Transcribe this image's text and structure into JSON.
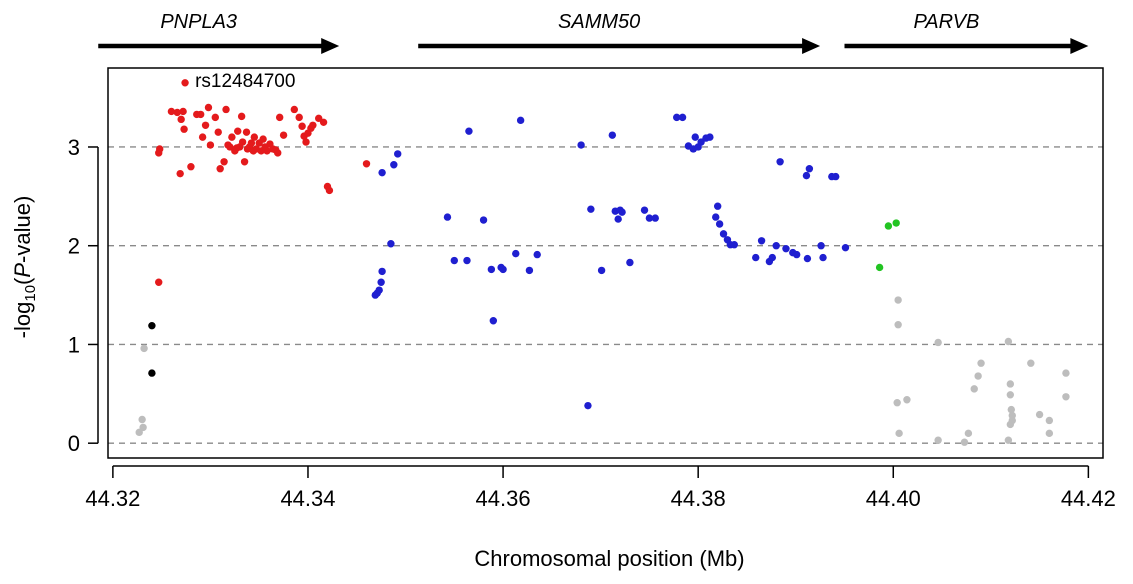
{
  "chart_data": {
    "type": "scatter",
    "xlabel": "Chromosomal position (Mb)",
    "ylabel_prefix": "-log",
    "ylabel_sub": "10",
    "ylabel_open": "(",
    "ylabel_italic": "P",
    "ylabel_suffix": "-value)",
    "xlim": [
      44.3195,
      44.4215
    ],
    "ylim": [
      -0.15,
      3.8
    ],
    "xticks": [
      {
        "value": 44.32,
        "label": "44.32"
      },
      {
        "value": 44.34,
        "label": "44.34"
      },
      {
        "value": 44.36,
        "label": "44.36"
      },
      {
        "value": 44.38,
        "label": "44.38"
      },
      {
        "value": 44.4,
        "label": "44.40"
      },
      {
        "value": 44.42,
        "label": "44.42"
      }
    ],
    "yticks": [
      {
        "value": 0,
        "label": "0"
      },
      {
        "value": 1,
        "label": "1"
      },
      {
        "value": 2,
        "label": "2"
      },
      {
        "value": 3,
        "label": "3"
      }
    ],
    "gridlines_y": [
      0,
      1,
      2,
      3
    ],
    "genes": [
      {
        "name": "PNPLA3",
        "start": 44.3185,
        "end": 44.3432
      },
      {
        "name": "SAMM50",
        "start": 44.3513,
        "end": 44.3925
      },
      {
        "name": "PARVB",
        "start": 44.395,
        "end": 44.42
      }
    ],
    "annotations": [
      {
        "text": "rs12484700",
        "x": 44.3274,
        "y": 3.65
      }
    ],
    "colors": {
      "red": "#e41a1c",
      "blue": "#1f1fd0",
      "green": "#22c422",
      "black": "#000000",
      "gray": "#bdbdbd"
    },
    "series": [
      {
        "color": "gray",
        "points": [
          [
            44.3227,
            0.11
          ],
          [
            44.3231,
            0.16
          ],
          [
            44.323,
            0.24
          ],
          [
            44.3232,
            0.96
          ],
          [
            44.4005,
            1.45
          ],
          [
            44.4005,
            1.2
          ],
          [
            44.4004,
            0.41
          ],
          [
            44.4006,
            0.1
          ],
          [
            44.4014,
            0.44
          ],
          [
            44.4046,
            1.02
          ],
          [
            44.4046,
            0.03
          ],
          [
            44.4073,
            0.01
          ],
          [
            44.4077,
            0.1
          ],
          [
            44.4083,
            0.55
          ],
          [
            44.4087,
            0.68
          ],
          [
            44.409,
            0.81
          ],
          [
            44.4118,
            1.03
          ],
          [
            44.412,
            0.6
          ],
          [
            44.412,
            0.49
          ],
          [
            44.4121,
            0.34
          ],
          [
            44.4122,
            0.28
          ],
          [
            44.4122,
            0.23
          ],
          [
            44.412,
            0.19
          ],
          [
            44.4118,
            0.03
          ],
          [
            44.4141,
            0.81
          ],
          [
            44.415,
            0.29
          ],
          [
            44.416,
            0.23
          ],
          [
            44.416,
            0.1
          ],
          [
            44.4177,
            0.71
          ],
          [
            44.4177,
            0.47
          ]
        ]
      },
      {
        "color": "black",
        "points": [
          [
            44.324,
            1.19
          ],
          [
            44.324,
            0.71
          ]
        ]
      },
      {
        "color": "red",
        "points": [
          [
            44.3274,
            3.65
          ],
          [
            44.3247,
            1.63
          ],
          [
            44.3248,
            2.98
          ],
          [
            44.3247,
            2.94
          ],
          [
            44.326,
            3.36
          ],
          [
            44.3266,
            3.35
          ],
          [
            44.3272,
            3.36
          ],
          [
            44.327,
            3.28
          ],
          [
            44.3273,
            3.18
          ],
          [
            44.3269,
            2.73
          ],
          [
            44.328,
            2.8
          ],
          [
            44.3286,
            3.33
          ],
          [
            44.329,
            3.33
          ],
          [
            44.3292,
            3.1
          ],
          [
            44.3295,
            3.22
          ],
          [
            44.3298,
            3.4
          ],
          [
            44.33,
            3.02
          ],
          [
            44.3305,
            3.3
          ],
          [
            44.3308,
            3.15
          ],
          [
            44.331,
            2.78
          ],
          [
            44.3314,
            2.85
          ],
          [
            44.3316,
            3.38
          ],
          [
            44.3318,
            3.02
          ],
          [
            44.332,
            3.0
          ],
          [
            44.3322,
            3.1
          ],
          [
            44.3325,
            2.96
          ],
          [
            44.3327,
            2.99
          ],
          [
            44.3328,
            3.16
          ],
          [
            44.333,
            3.0
          ],
          [
            44.3332,
            3.31
          ],
          [
            44.3333,
            3.05
          ],
          [
            44.3335,
            2.85
          ],
          [
            44.3337,
            3.15
          ],
          [
            44.3338,
            2.98
          ],
          [
            44.334,
            3.0
          ],
          [
            44.3342,
            3.04
          ],
          [
            44.3344,
            2.96
          ],
          [
            44.3345,
            3.1
          ],
          [
            44.3347,
            2.98
          ],
          [
            44.335,
            3.04
          ],
          [
            44.3352,
            2.96
          ],
          [
            44.3354,
            3.08
          ],
          [
            44.3356,
            3.0
          ],
          [
            44.3358,
            2.96
          ],
          [
            44.3361,
            3.03
          ],
          [
            44.3364,
            2.98
          ],
          [
            44.3367,
            2.97
          ],
          [
            44.3369,
            2.94
          ],
          [
            44.3371,
            3.3
          ],
          [
            44.3375,
            3.12
          ],
          [
            44.3386,
            3.38
          ],
          [
            44.3391,
            3.3
          ],
          [
            44.3394,
            3.21
          ],
          [
            44.3396,
            3.11
          ],
          [
            44.3398,
            3.05
          ],
          [
            44.34,
            3.14
          ],
          [
            44.3403,
            3.19
          ],
          [
            44.3405,
            3.22
          ],
          [
            44.3411,
            3.29
          ],
          [
            44.3416,
            3.25
          ],
          [
            44.342,
            2.6
          ],
          [
            44.3422,
            2.56
          ],
          [
            44.346,
            2.83
          ]
        ]
      },
      {
        "color": "blue",
        "points": [
          [
            44.3469,
            1.5
          ],
          [
            44.3471,
            1.52
          ],
          [
            44.3473,
            1.55
          ],
          [
            44.3475,
            1.63
          ],
          [
            44.3476,
            1.74
          ],
          [
            44.3476,
            2.74
          ],
          [
            44.3485,
            2.02
          ],
          [
            44.3488,
            2.82
          ],
          [
            44.3492,
            2.93
          ],
          [
            44.3543,
            2.29
          ],
          [
            44.355,
            1.85
          ],
          [
            44.3563,
            1.85
          ],
          [
            44.3565,
            3.16
          ],
          [
            44.358,
            2.26
          ],
          [
            44.3588,
            1.76
          ],
          [
            44.359,
            1.24
          ],
          [
            44.3598,
            1.78
          ],
          [
            44.36,
            1.76
          ],
          [
            44.3613,
            1.92
          ],
          [
            44.3618,
            3.27
          ],
          [
            44.3627,
            1.75
          ],
          [
            44.3635,
            1.91
          ],
          [
            44.368,
            3.02
          ],
          [
            44.3687,
            0.38
          ],
          [
            44.369,
            2.37
          ],
          [
            44.3701,
            1.75
          ],
          [
            44.3712,
            3.12
          ],
          [
            44.3715,
            2.35
          ],
          [
            44.3718,
            2.27
          ],
          [
            44.372,
            2.36
          ],
          [
            44.3722,
            2.34
          ],
          [
            44.373,
            1.83
          ],
          [
            44.3745,
            2.36
          ],
          [
            44.375,
            2.28
          ],
          [
            44.3756,
            2.28
          ],
          [
            44.3778,
            3.3
          ],
          [
            44.3784,
            3.3
          ],
          [
            44.379,
            3.01
          ],
          [
            44.3795,
            2.98
          ],
          [
            44.3797,
            3.1
          ],
          [
            44.38,
            3.0
          ],
          [
            44.3803,
            3.05
          ],
          [
            44.3808,
            3.09
          ],
          [
            44.3812,
            3.1
          ],
          [
            44.3818,
            2.29
          ],
          [
            44.382,
            2.4
          ],
          [
            44.3822,
            2.22
          ],
          [
            44.3826,
            2.12
          ],
          [
            44.383,
            2.06
          ],
          [
            44.3833,
            2.01
          ],
          [
            44.3837,
            2.01
          ],
          [
            44.3859,
            1.88
          ],
          [
            44.3865,
            2.05
          ],
          [
            44.3873,
            1.84
          ],
          [
            44.3876,
            1.88
          ],
          [
            44.388,
            2.0
          ],
          [
            44.3884,
            2.85
          ],
          [
            44.389,
            1.97
          ],
          [
            44.3897,
            1.93
          ],
          [
            44.3901,
            1.91
          ],
          [
            44.3911,
            2.71
          ],
          [
            44.3912,
            1.87
          ],
          [
            44.3914,
            2.78
          ],
          [
            44.3926,
            2.0
          ],
          [
            44.3928,
            1.88
          ],
          [
            44.3937,
            2.7
          ],
          [
            44.3941,
            2.7
          ],
          [
            44.3951,
            1.98
          ]
        ]
      },
      {
        "color": "green",
        "points": [
          [
            44.3986,
            1.78
          ],
          [
            44.3995,
            2.2
          ],
          [
            44.4003,
            2.23
          ]
        ]
      }
    ]
  }
}
